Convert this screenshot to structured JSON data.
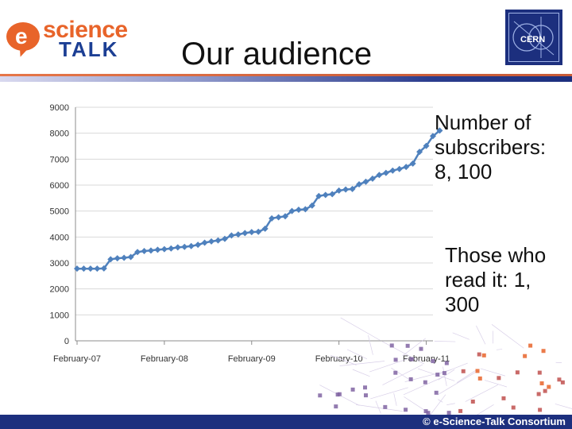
{
  "header": {
    "logo_e": "e",
    "logo_science": "science",
    "logo_talk": "TALK",
    "title": "Our audience",
    "org_logo_text": "CERN",
    "org_logo_icon": "cern-logo-icon"
  },
  "annotations": {
    "subscribers": "Number of subscribers: 8, 100",
    "readers": "Those who read it: 1, 300"
  },
  "footer": {
    "text": "© e-Science-Talk Consortium"
  },
  "colors": {
    "series": "#4f81bd",
    "orange": "#e8642a",
    "navy": "#1c2f7e",
    "grid": "#d9d9d9",
    "decor": [
      "#e8642a",
      "#c0504d",
      "#8064a2"
    ]
  },
  "chart_data": {
    "type": "line",
    "title": "",
    "xlabel": "",
    "ylabel": "",
    "ylim": [
      0,
      9000
    ],
    "yticks": [
      0,
      1000,
      2000,
      3000,
      4000,
      5000,
      6000,
      7000,
      8000,
      9000
    ],
    "ytick_labels": [
      "0",
      "1000",
      "2000",
      "3000",
      "4000",
      "5000",
      "6000",
      "7000",
      "8000",
      "9000"
    ],
    "xtick_labels": [
      "February-07",
      "February-08",
      "February-09",
      "February-10",
      "February-11"
    ],
    "grid": true,
    "legend": "none",
    "series": [
      {
        "values": [
          2780,
          2780,
          2780,
          2780,
          2790,
          3140,
          3180,
          3200,
          3230,
          3420,
          3460,
          3480,
          3510,
          3530,
          3560,
          3600,
          3620,
          3650,
          3700,
          3780,
          3830,
          3870,
          3930,
          4060,
          4100,
          4150,
          4190,
          4200,
          4320,
          4720,
          4760,
          4800,
          5000,
          5050,
          5070,
          5210,
          5580,
          5620,
          5650,
          5790,
          5830,
          5850,
          6030,
          6130,
          6250,
          6390,
          6470,
          6560,
          6620,
          6700,
          6830,
          7280,
          7510,
          7890,
          8100
        ]
      }
    ]
  }
}
